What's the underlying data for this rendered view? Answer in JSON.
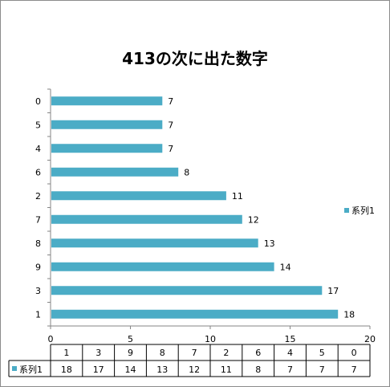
{
  "chart_data": {
    "type": "bar",
    "orientation": "horizontal",
    "title": "413の次に出た数字",
    "categories": [
      "1",
      "3",
      "9",
      "8",
      "7",
      "2",
      "6",
      "4",
      "5",
      "0"
    ],
    "series": [
      {
        "name": "系列1",
        "values": [
          18,
          17,
          14,
          13,
          12,
          11,
          8,
          7,
          7,
          7
        ]
      }
    ],
    "xlim": [
      0,
      20
    ],
    "x_ticks": [
      0,
      5,
      10,
      15,
      20
    ],
    "grid": false,
    "legend_position": "right",
    "data_labels": true,
    "data_table": true,
    "colors": {
      "bar": "#4bacc6",
      "axis": "#868686"
    }
  }
}
